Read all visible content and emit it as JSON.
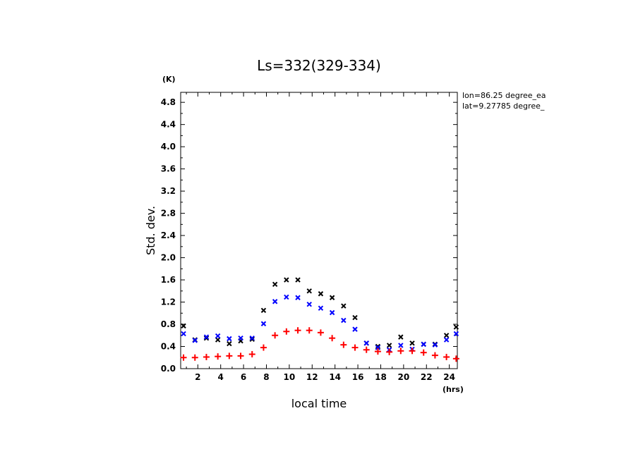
{
  "chart_data": {
    "type": "scatter",
    "title": "Ls=332(329-334)",
    "xlabel": "local time",
    "ylabel": "Std. dev.",
    "x_unit": "(hrs)",
    "y_unit": "(K)",
    "xlim": [
      0.5,
      24.7
    ],
    "ylim": [
      0,
      4.98
    ],
    "x_ticks": [
      2,
      4,
      6,
      8,
      10,
      12,
      14,
      16,
      18,
      20,
      22,
      24
    ],
    "y_ticks": [
      0.0,
      0.4,
      0.8,
      1.2,
      1.6,
      2.0,
      2.4,
      2.8,
      3.2,
      3.6,
      4.0,
      4.4,
      4.8
    ],
    "annotations": [
      "lon=86.25 degree_ea",
      "lat=9.27785 degree_"
    ],
    "series": [
      {
        "marker": "x",
        "color": "#000000",
        "x": [
          0.75,
          1.75,
          2.75,
          3.75,
          4.75,
          5.75,
          6.75,
          7.75,
          8.75,
          9.75,
          10.75,
          11.75,
          12.75,
          13.75,
          14.75,
          15.75,
          16.75,
          17.75,
          18.75,
          19.75,
          20.75,
          21.75,
          22.75,
          23.75,
          24.6
        ],
        "y": [
          0.77,
          0.52,
          0.55,
          0.52,
          0.45,
          0.5,
          0.53,
          1.05,
          1.52,
          1.6,
          1.6,
          1.4,
          1.35,
          1.28,
          1.13,
          0.92,
          0.46,
          0.4,
          0.42,
          0.57,
          0.46,
          0.44,
          0.44,
          0.6,
          0.75
        ]
      },
      {
        "marker": "x",
        "color": "#0000ff",
        "x": [
          0.75,
          1.75,
          2.75,
          3.75,
          4.75,
          5.75,
          6.75,
          7.75,
          8.75,
          9.75,
          10.75,
          11.75,
          12.75,
          13.75,
          14.75,
          15.75,
          16.75,
          17.75,
          18.75,
          19.75,
          20.75,
          21.75,
          22.75,
          23.75,
          24.6
        ],
        "y": [
          0.63,
          0.51,
          0.57,
          0.59,
          0.54,
          0.55,
          0.55,
          0.81,
          1.21,
          1.29,
          1.28,
          1.16,
          1.09,
          1.01,
          0.87,
          0.71,
          0.46,
          0.38,
          0.34,
          0.42,
          0.35,
          0.44,
          0.43,
          0.52,
          0.63
        ]
      },
      {
        "marker": "+",
        "color": "#ff0000",
        "x": [
          0.75,
          1.75,
          2.75,
          3.75,
          4.75,
          5.75,
          6.75,
          7.75,
          8.75,
          9.75,
          10.75,
          11.75,
          12.75,
          13.75,
          14.75,
          15.75,
          16.75,
          17.75,
          18.75,
          19.75,
          20.75,
          21.75,
          22.75,
          23.75,
          24.6
        ],
        "y": [
          0.2,
          0.2,
          0.21,
          0.22,
          0.23,
          0.23,
          0.26,
          0.38,
          0.6,
          0.67,
          0.69,
          0.69,
          0.65,
          0.55,
          0.43,
          0.38,
          0.34,
          0.31,
          0.3,
          0.32,
          0.32,
          0.29,
          0.24,
          0.21,
          0.18
        ]
      }
    ]
  }
}
